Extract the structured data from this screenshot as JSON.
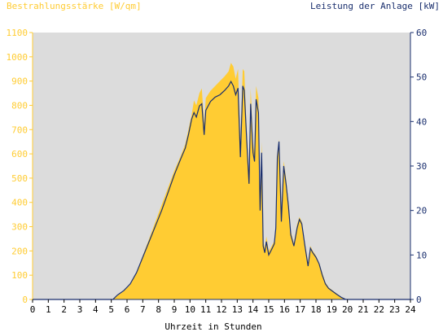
{
  "chart_data": {
    "type": "area",
    "left_axis_title": "Bestrahlungsstärke [W/qm]",
    "right_axis_title": "Leistung der Anlage [kW]",
    "xlabel": "Uhrzeit in Stunden",
    "xlim": [
      0,
      24
    ],
    "ylim_left": [
      0,
      1100
    ],
    "ylim_right": [
      0,
      60
    ],
    "x_ticks": [
      "0",
      "1",
      "2",
      "3",
      "4",
      "5",
      "6",
      "7",
      "8",
      "9",
      "10",
      "11",
      "12",
      "13",
      "14",
      "15",
      "16",
      "17",
      "18",
      "19",
      "20",
      "21",
      "22",
      "23",
      "24"
    ],
    "y_left_ticks": [
      "0",
      "100",
      "200",
      "300",
      "400",
      "500",
      "600",
      "700",
      "800",
      "900",
      "1000",
      "1100"
    ],
    "y_right_ticks": [
      "0",
      "10",
      "20",
      "30",
      "40",
      "50",
      "60"
    ],
    "colors": {
      "plot_background": "#dcdcdc",
      "irradiance_fill": "#ffcc33",
      "power_line": "#1a2f6e",
      "left_axis_text": "#ffcc33",
      "right_axis_text": "#1a2f6e"
    },
    "series": [
      {
        "role": "irradiance",
        "axis": "left",
        "points": [
          [
            0,
            0
          ],
          [
            5.1,
            0
          ],
          [
            5.4,
            15
          ],
          [
            5.8,
            35
          ],
          [
            6.2,
            60
          ],
          [
            6.6,
            110
          ],
          [
            7.0,
            180
          ],
          [
            7.4,
            250
          ],
          [
            7.8,
            320
          ],
          [
            8.2,
            390
          ],
          [
            8.6,
            460
          ],
          [
            9.0,
            530
          ],
          [
            9.4,
            590
          ],
          [
            9.7,
            640
          ],
          [
            9.9,
            700
          ],
          [
            10.1,
            760
          ],
          [
            10.25,
            820
          ],
          [
            10.4,
            800
          ],
          [
            10.6,
            850
          ],
          [
            10.75,
            870
          ],
          [
            10.9,
            720
          ],
          [
            11.0,
            830
          ],
          [
            11.3,
            860
          ],
          [
            11.6,
            880
          ],
          [
            11.9,
            900
          ],
          [
            12.2,
            920
          ],
          [
            12.45,
            940
          ],
          [
            12.6,
            975
          ],
          [
            12.75,
            960
          ],
          [
            12.9,
            910
          ],
          [
            13.05,
            950
          ],
          [
            13.2,
            640
          ],
          [
            13.35,
            950
          ],
          [
            13.45,
            940
          ],
          [
            13.6,
            700
          ],
          [
            13.75,
            500
          ],
          [
            13.85,
            870
          ],
          [
            14.0,
            650
          ],
          [
            14.1,
            600
          ],
          [
            14.2,
            880
          ],
          [
            14.35,
            830
          ],
          [
            14.45,
            400
          ],
          [
            14.55,
            650
          ],
          [
            14.65,
            240
          ],
          [
            14.75,
            210
          ],
          [
            14.85,
            260
          ],
          [
            15.0,
            200
          ],
          [
            15.15,
            215
          ],
          [
            15.35,
            240
          ],
          [
            15.45,
            310
          ],
          [
            15.55,
            600
          ],
          [
            15.65,
            660
          ],
          [
            15.8,
            350
          ],
          [
            15.95,
            570
          ],
          [
            16.1,
            500
          ],
          [
            16.25,
            400
          ],
          [
            16.4,
            280
          ],
          [
            16.6,
            230
          ],
          [
            16.8,
            310
          ],
          [
            16.95,
            340
          ],
          [
            17.1,
            320
          ],
          [
            17.3,
            230
          ],
          [
            17.5,
            150
          ],
          [
            17.65,
            220
          ],
          [
            17.8,
            200
          ],
          [
            18.0,
            180
          ],
          [
            18.2,
            150
          ],
          [
            18.4,
            110
          ],
          [
            18.6,
            70
          ],
          [
            18.8,
            50
          ],
          [
            19.0,
            40
          ],
          [
            19.3,
            25
          ],
          [
            19.6,
            10
          ],
          [
            19.9,
            0
          ],
          [
            24,
            0
          ]
        ]
      },
      {
        "role": "power",
        "axis": "right",
        "points": [
          [
            0,
            0
          ],
          [
            5.1,
            0
          ],
          [
            5.4,
            1
          ],
          [
            5.8,
            2
          ],
          [
            6.2,
            3.5
          ],
          [
            6.6,
            6
          ],
          [
            7.0,
            9.5
          ],
          [
            7.4,
            13
          ],
          [
            7.8,
            16.5
          ],
          [
            8.2,
            20
          ],
          [
            8.6,
            24
          ],
          [
            9.0,
            28
          ],
          [
            9.4,
            31.5
          ],
          [
            9.7,
            34
          ],
          [
            9.9,
            37
          ],
          [
            10.1,
            40.5
          ],
          [
            10.25,
            42
          ],
          [
            10.4,
            41
          ],
          [
            10.6,
            43.5
          ],
          [
            10.75,
            44
          ],
          [
            10.9,
            37
          ],
          [
            11.0,
            42.5
          ],
          [
            11.3,
            44.5
          ],
          [
            11.6,
            45.5
          ],
          [
            11.9,
            46
          ],
          [
            12.2,
            47
          ],
          [
            12.45,
            48
          ],
          [
            12.6,
            49
          ],
          [
            12.75,
            48
          ],
          [
            12.9,
            46
          ],
          [
            13.05,
            47.5
          ],
          [
            13.2,
            32
          ],
          [
            13.35,
            48
          ],
          [
            13.45,
            47
          ],
          [
            13.6,
            36
          ],
          [
            13.75,
            26
          ],
          [
            13.85,
            44
          ],
          [
            14.0,
            33
          ],
          [
            14.1,
            31
          ],
          [
            14.2,
            45
          ],
          [
            14.35,
            42
          ],
          [
            14.45,
            20
          ],
          [
            14.55,
            33
          ],
          [
            14.65,
            12
          ],
          [
            14.75,
            10.5
          ],
          [
            14.85,
            13
          ],
          [
            15.0,
            10
          ],
          [
            15.15,
            11
          ],
          [
            15.35,
            12.5
          ],
          [
            15.45,
            16
          ],
          [
            15.55,
            32
          ],
          [
            15.65,
            35.5
          ],
          [
            15.8,
            17.5
          ],
          [
            15.95,
            30
          ],
          [
            16.1,
            26
          ],
          [
            16.25,
            21
          ],
          [
            16.4,
            14.5
          ],
          [
            16.6,
            12
          ],
          [
            16.8,
            16
          ],
          [
            16.95,
            18
          ],
          [
            17.1,
            17
          ],
          [
            17.3,
            12
          ],
          [
            17.5,
            7.5
          ],
          [
            17.65,
            11.5
          ],
          [
            17.8,
            10.5
          ],
          [
            18.0,
            9.5
          ],
          [
            18.2,
            8
          ],
          [
            18.4,
            5.5
          ],
          [
            18.6,
            3.5
          ],
          [
            18.8,
            2.5
          ],
          [
            19.0,
            2
          ],
          [
            19.3,
            1.2
          ],
          [
            19.6,
            0.5
          ],
          [
            19.9,
            0
          ],
          [
            24,
            0
          ]
        ]
      }
    ]
  }
}
